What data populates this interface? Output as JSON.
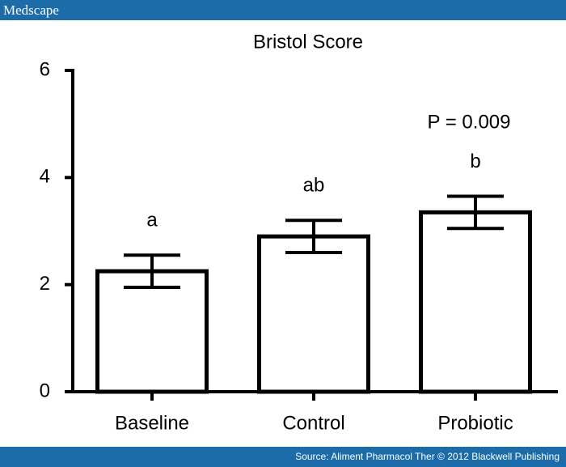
{
  "header": {
    "brand": "Medscape"
  },
  "chart_data": {
    "type": "bar",
    "title": "Bristol Score",
    "categories": [
      "Baseline",
      "Control",
      "Probiotic"
    ],
    "values": [
      2.25,
      2.9,
      3.35
    ],
    "errors": [
      0.3,
      0.3,
      0.3
    ],
    "annotations": [
      "a",
      "ab",
      "b"
    ],
    "p_value_label": "P = 0.009",
    "color": "#ffffff",
    "edgecolor": "#000000",
    "ylim": [
      0,
      6
    ],
    "yticks": [
      0,
      2,
      4,
      6
    ],
    "grid": false
  },
  "footer": {
    "source": "Source: Aliment Pharmacol Ther © 2012 Blackwell Publishing"
  }
}
